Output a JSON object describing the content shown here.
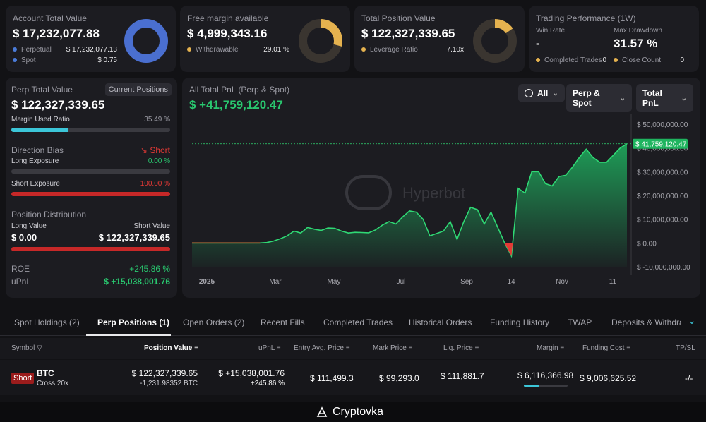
{
  "account": {
    "title": "Account Total Value",
    "value": "$ 17,232,077.88",
    "rows": [
      {
        "label": "Perpetual",
        "value": "$ 17,232,077.13",
        "color": "#4a7bd8"
      },
      {
        "label": "Spot",
        "value": "$ 0.75",
        "color": "#4a7bd8"
      }
    ]
  },
  "free_margin": {
    "title": "Free margin available",
    "value": "$ 4,999,343.16",
    "rows": [
      {
        "label": "Withdrawable",
        "value": "29.01 %",
        "color": "#e5b24f"
      }
    ]
  },
  "position_value": {
    "title": "Total Position Value",
    "value": "$ 122,327,339.65",
    "rows": [
      {
        "label": "Leverage Ratio",
        "value": "7.10x",
        "color": "#e5b24f"
      }
    ]
  },
  "performance": {
    "title": "Trading Performance (1W)",
    "win_rate_label": "Win Rate",
    "win_rate": "-",
    "drawdown_label": "Max Drawdown",
    "drawdown": "31.57 %",
    "completed_label": "Completed Trades",
    "completed": "0",
    "close_label": "Close Count",
    "close": "0"
  },
  "perp": {
    "title": "Perp Total Value",
    "badge": "Current Positions",
    "value": "$ 122,327,339.65",
    "margin_label": "Margin Used Ratio",
    "margin_value": "35.49 %",
    "margin_fraction": 0.3549,
    "bias_label": "Direction Bias",
    "bias_value": "Short",
    "long_label": "Long Exposure",
    "long_value": "0.00 %",
    "short_label": "Short Exposure",
    "short_value": "100.00 %",
    "dist_label": "Position Distribution",
    "long_v_label": "Long Value",
    "short_v_label": "Short Value",
    "long_v": "$ 0.00",
    "short_v": "$ 122,327,339.65",
    "roe_label": "ROE",
    "roe": "+245.86 %",
    "upnl_label": "uPnL",
    "upnl": "$ +15,038,001.76"
  },
  "pnl": {
    "title": "All Total PnL (Perp & Spot)",
    "value": "$ +41,759,120.47",
    "filter_time": "All",
    "filter_scope": "Perp & Spot",
    "filter_metric": "Total PnL",
    "watermark": "Hyperbot"
  },
  "chart_data": {
    "type": "area",
    "x_labels": [
      "2025",
      "Mar",
      "May",
      "Jul",
      "Sep",
      "14",
      "Nov",
      "11"
    ],
    "y_ticks": [
      "$ 50,000,000.00",
      "$ 40,000,000.00",
      "$ 30,000,000.00",
      "$ 20,000,000.00",
      "$ 10,000,000.00",
      "$ 0.00",
      "$ -10,000,000.00"
    ],
    "ylim": [
      -10000000,
      50000000
    ],
    "current_label": "$ 41,759,120.47",
    "current_value": 41759120.47,
    "values": [
      0,
      0,
      0,
      0,
      0,
      0,
      0,
      0,
      0,
      0,
      0,
      200000,
      800000,
      1800000,
      3000000,
      5000000,
      4200000,
      6500000,
      5800000,
      5300000,
      6300000,
      6200000,
      5000000,
      4200000,
      4500000,
      4400000,
      4300000,
      5500000,
      7500000,
      9000000,
      8000000,
      11000000,
      13500000,
      13000000,
      10000000,
      3000000,
      4000000,
      5000000,
      9000000,
      1500000,
      9000000,
      15000000,
      14000000,
      8000000,
      13000000,
      6500000,
      0,
      -5500000,
      23000000,
      21000000,
      30000000,
      30000000,
      25000000,
      24000000,
      28000000,
      28500000,
      32000000,
      36000000,
      39500000,
      36000000,
      34000000,
      34000000,
      37000000,
      40000000,
      41759120
    ]
  },
  "tabs": [
    "Spot Holdings (2)",
    "Perp Positions (1)",
    "Open Orders (2)",
    "Recent Fills",
    "Completed Trades",
    "Historical Orders",
    "Funding History",
    "TWAP",
    "Deposits & Withdraw"
  ],
  "table": {
    "headers": [
      "Symbol",
      "Position Value",
      "uPnL",
      "Entry Avg. Price",
      "Mark Price",
      "Liq. Price",
      "Margin",
      "Funding Cost",
      "TP/SL"
    ],
    "row": {
      "side": "Short",
      "symbol": "BTC",
      "mode": "Cross 20x",
      "position_value": "$ 122,327,339.65",
      "position_size": "-1,231.98352 BTC",
      "upnl": "$ +15,038,001.76",
      "upnl_pct": "+245.86 %",
      "entry": "$ 111,499.3",
      "mark": "$ 99,293.0",
      "liq": "$ 111,881.7",
      "margin": "$ 6,116,366.98",
      "funding": "$ 9,006,625.52",
      "tpsl": "-/-"
    }
  },
  "footer": {
    "brand": "Cryptovka"
  },
  "colors": {
    "green": "#29c76f",
    "red": "#e53935",
    "blue": "#4a7bd8",
    "gold": "#e5b24f",
    "teal": "#3cc6d8"
  }
}
